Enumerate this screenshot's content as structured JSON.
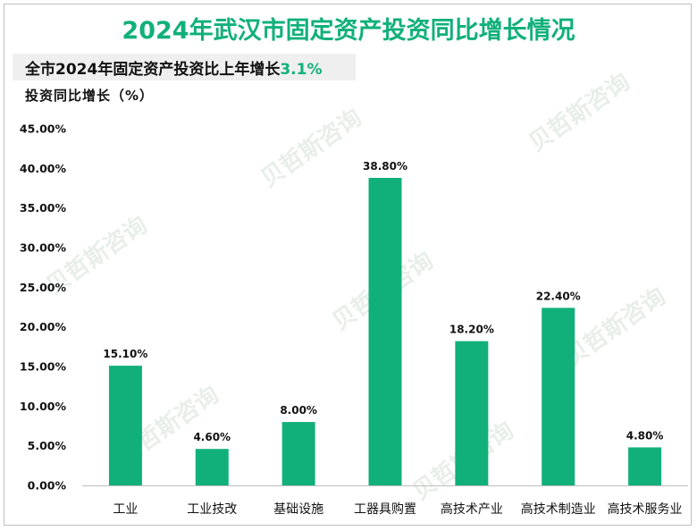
{
  "title": "2024年武汉市固定资产投资同比增长情况",
  "subtitle": {
    "prefix": "全市2024年固定资产投资比上年增长",
    "highlight": "3.1%"
  },
  "watermark": "贝哲斯咨询",
  "colors": {
    "accent": "#11b07a",
    "bar": "#11b07a"
  },
  "chart_data": {
    "type": "bar",
    "title": "2024年武汉市固定资产投资同比增长情况",
    "xlabel": "",
    "ylabel": "投资同比增长（%）",
    "ylim": [
      0,
      45
    ],
    "yticks": [
      0,
      5,
      10,
      15,
      20,
      25,
      30,
      35,
      40,
      45
    ],
    "ytick_labels": [
      "0.00%",
      "5.00%",
      "10.00%",
      "15.00%",
      "20.00%",
      "25.00%",
      "30.00%",
      "35.00%",
      "40.00%",
      "45.00%"
    ],
    "categories": [
      "工业",
      "工业技改",
      "基础设施",
      "工器具购置",
      "高技术产业",
      "高技术制造业",
      "高技术服务业"
    ],
    "values": [
      15.1,
      4.6,
      8.0,
      38.8,
      18.2,
      22.4,
      4.8
    ],
    "value_labels": [
      "15.10%",
      "4.60%",
      "8.00%",
      "38.80%",
      "18.20%",
      "22.40%",
      "4.80%"
    ],
    "grid": false,
    "legend": "none"
  }
}
